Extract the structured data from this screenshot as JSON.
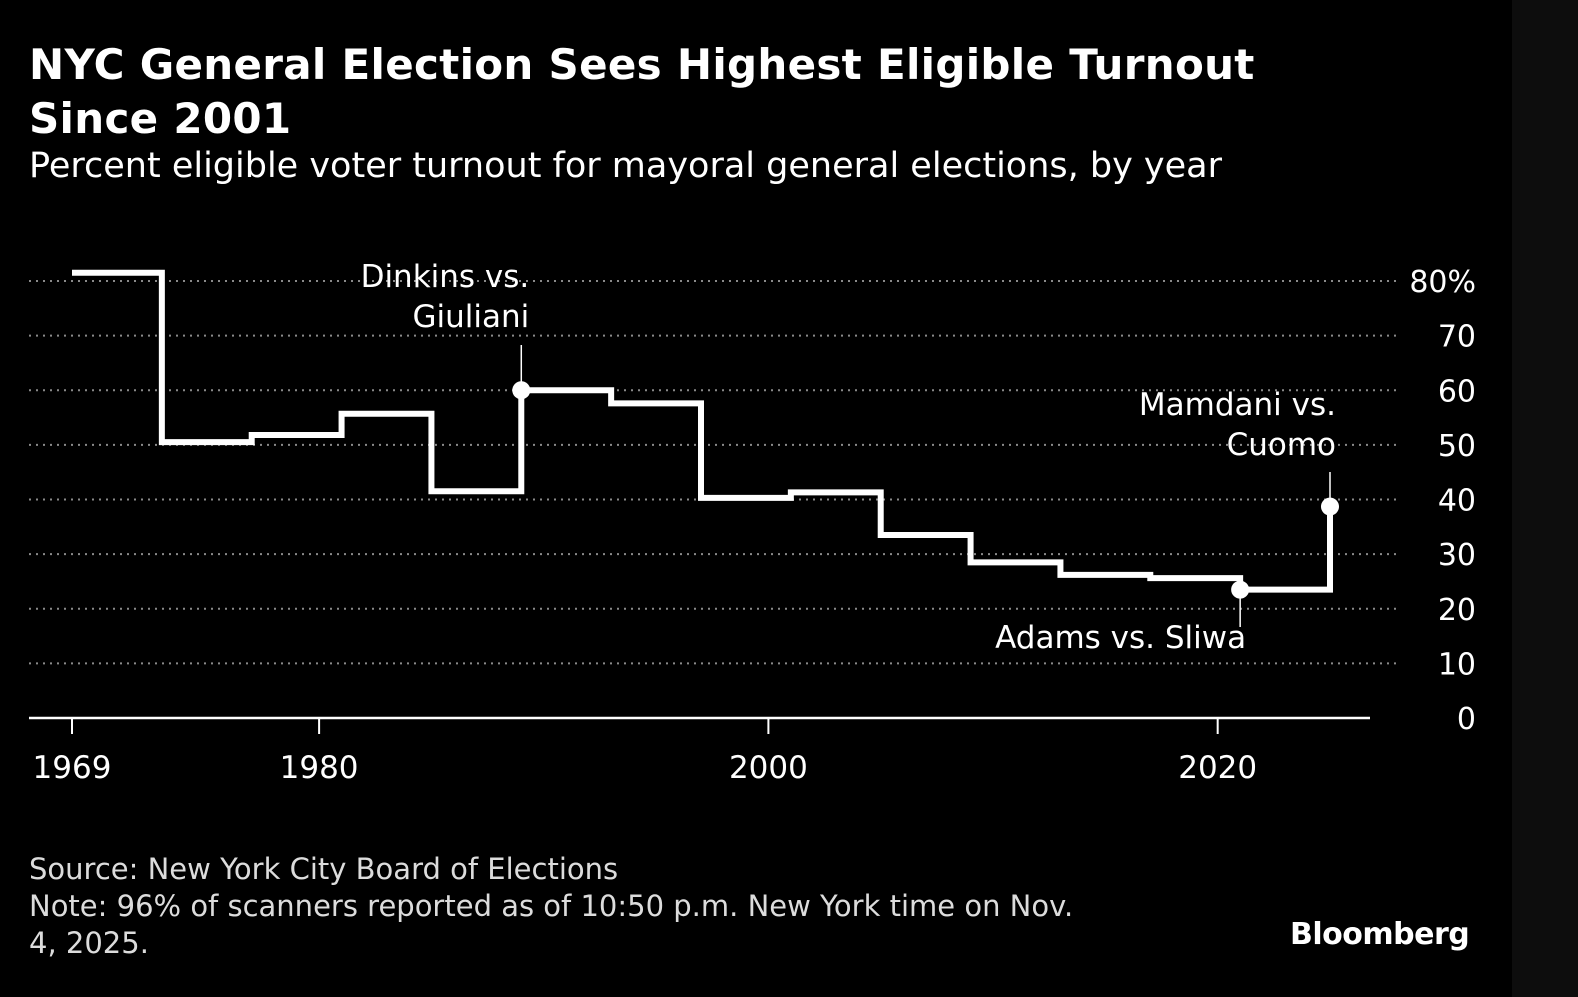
{
  "colors": {
    "background": "#000000",
    "line": "#ffffff",
    "grid": "#8a8a8a",
    "text": "#ffffff",
    "muted_text": "#dcdcdc"
  },
  "header": {
    "title": "NYC General Election Sees Highest Eligible Turnout Since 2001",
    "subtitle": "Percent eligible voter turnout for mayoral general elections, by year"
  },
  "chart_data": {
    "type": "line",
    "step": true,
    "title": "NYC General Election Sees Highest Eligible Turnout Since 2001",
    "subtitle": "Percent eligible voter turnout for mayoral general elections, by year",
    "xlabel": "",
    "ylabel": "",
    "xlim": [
      1969,
      2025
    ],
    "ylim": [
      0,
      80
    ],
    "y_axis_position": "right",
    "grid": "dotted horizontal",
    "x_ticks": [
      "1969",
      "1980",
      "2000",
      "2020"
    ],
    "y_ticks": [
      "80%",
      "70",
      "60",
      "50",
      "40",
      "30",
      "20",
      "10",
      "0"
    ],
    "series": [
      {
        "x": [
          1969,
          1973,
          1977,
          1981,
          1985,
          1989,
          1993,
          1997,
          2001,
          2005,
          2009,
          2013,
          2017,
          2021,
          2025
        ],
        "y": [
          81.5,
          50.5,
          51.8,
          55.7,
          41.5,
          60,
          57.6,
          40.3,
          41.3,
          33.5,
          28.5,
          26.2,
          25.6,
          23.5,
          38.7
        ]
      }
    ],
    "annotations": [
      {
        "x": 1989,
        "y": 60,
        "lines": [
          "Dinkins vs.",
          "Giuliani"
        ]
      },
      {
        "x": 2021,
        "y": 23.5,
        "lines": [
          "Adams vs. Sliwa"
        ]
      },
      {
        "x": 2025,
        "y": 38.7,
        "lines": [
          "Mamdani vs.",
          "Cuomo"
        ]
      }
    ]
  },
  "footer": {
    "source": "Source: New York City Board of Elections",
    "note": "Note: 96% of scanners reported as of 10:50 p.m. New York time on Nov.\n4, 2025."
  },
  "brand": {
    "logo_text": "Bloomberg"
  }
}
